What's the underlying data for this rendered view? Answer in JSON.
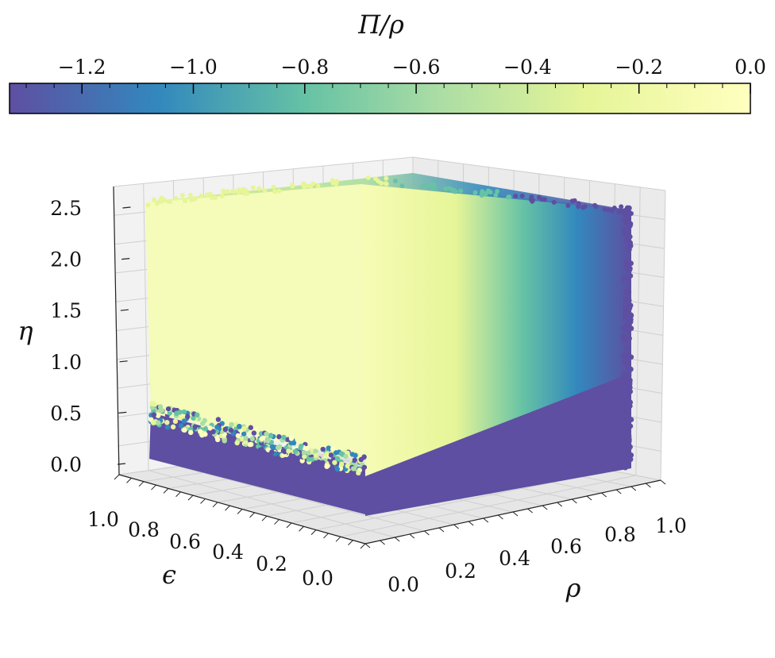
{
  "chart_data": {
    "type": "scatter",
    "projection": "3d",
    "colorbar": {
      "label": "Π/ρ",
      "ticks": [
        "−1.2",
        "−1.0",
        "−0.8",
        "−0.6",
        "−0.4",
        "−0.2",
        "0.0"
      ],
      "tick_values": [
        -1.2,
        -1.0,
        -0.8,
        -0.6,
        -0.4,
        -0.2,
        0.0
      ],
      "range": [
        -1.33,
        0.0
      ],
      "colormap": "Spectral-like (purple → blue → teal → green → pale yellow)",
      "colors": [
        "#5e4fa2",
        "#3288bd",
        "#66c2a5",
        "#abdda4",
        "#e6f598",
        "#ffffbf"
      ],
      "location": "top"
    },
    "axes": {
      "z": {
        "label": "η",
        "ticks": [
          "0.0",
          "0.5",
          "1.0",
          "1.5",
          "2.0",
          "2.5"
        ],
        "range": [
          0.0,
          2.6
        ]
      },
      "epsilon": {
        "label": "ϵ",
        "ticks": [
          "1.0",
          "0.8",
          "0.6",
          "0.4",
          "0.2",
          "0.0"
        ],
        "range": [
          0.0,
          1.0
        ]
      },
      "rho": {
        "label": "ρ",
        "ticks": [
          "0.0",
          "0.2",
          "0.4",
          "0.6",
          "0.8",
          "1.0"
        ],
        "range": [
          0.0,
          1.0
        ]
      }
    },
    "description_of_points": "Dense point cloud filling the cube; Π/ρ near 0.0 for η above ~0.3 at low ρ, decreasing toward ≈ −1.3 as ρ approaches 1 and for η near 0.",
    "value_samples": [
      {
        "rho": 0.0,
        "eta": 2.5,
        "value": 0.0
      },
      {
        "rho": 0.3,
        "eta": 1.5,
        "value": -0.05
      },
      {
        "rho": 0.6,
        "eta": 1.5,
        "value": -0.4
      },
      {
        "rho": 0.8,
        "eta": 1.5,
        "value": -1.0
      },
      {
        "rho": 1.0,
        "eta": 1.0,
        "value": -1.3
      },
      {
        "rho": 0.5,
        "eta": 0.1,
        "value": -1.3
      },
      {
        "rho": 0.0,
        "eta": 0.1,
        "value": -1.3
      }
    ],
    "grid": true
  }
}
